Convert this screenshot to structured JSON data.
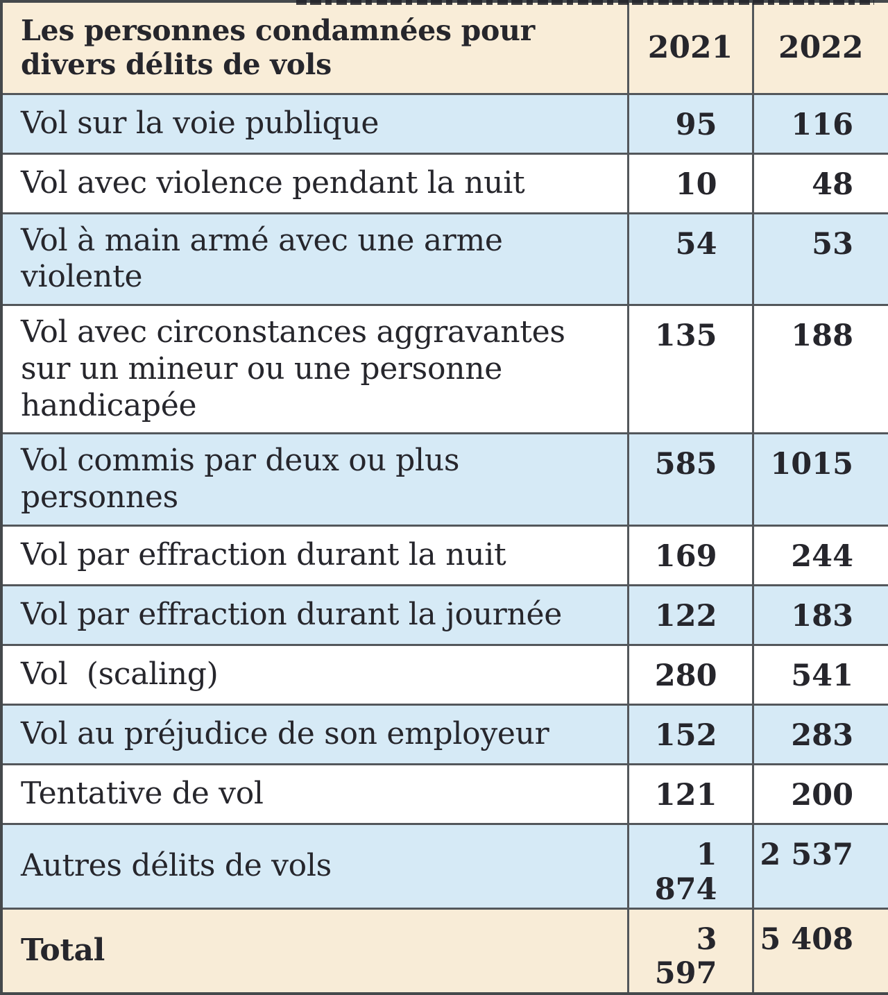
{
  "table": {
    "header": {
      "title": "Les personnes condamnées pour divers délits de vols",
      "col_2021": "2021",
      "col_2022": "2022"
    },
    "rows": [
      {
        "label": "Vol sur la voie publique",
        "v2021": "95",
        "v2022": "116"
      },
      {
        "label": "Vol avec violence pendant la nuit",
        "v2021": "10",
        "v2022": "48"
      },
      {
        "label": "Vol à main armé avec une arme violente",
        "v2021": "54",
        "v2022": "53"
      },
      {
        "label": "Vol avec circonstances aggravantes sur un mineur ou une personne handicapée",
        "v2021": "135",
        "v2022": "188"
      },
      {
        "label": "Vol commis par deux ou plus personnes",
        "v2021": "585",
        "v2022": "1015"
      },
      {
        "label": "Vol par effraction durant la nuit",
        "v2021": "169",
        "v2022": "244"
      },
      {
        "label": "Vol par effraction durant la journée",
        "v2021": "122",
        "v2022": "183"
      },
      {
        "label": "Vol  (scaling)",
        "v2021": "280",
        "v2022": "541"
      },
      {
        "label": "Vol au préjudice de son employeur",
        "v2021": "152",
        "v2022": "283"
      },
      {
        "label": "Tentative de vol",
        "v2021": "121",
        "v2022": "200"
      },
      {
        "label": "Autres délits de vols",
        "v2021": "1 874",
        "v2022": "2 537"
      }
    ],
    "total": {
      "label": "Total",
      "v2021": "3 597",
      "v2022": "5 408"
    }
  },
  "chart_data": {
    "type": "table",
    "title": "Les personnes condamnées pour divers délits de vols",
    "categories": [
      "Vol sur la voie publique",
      "Vol avec violence pendant la nuit",
      "Vol à main armé avec une arme violente",
      "Vol avec circonstances aggravantes sur un mineur ou une personne handicapée",
      "Vol commis par deux ou plus personnes",
      "Vol par effraction durant la nuit",
      "Vol par effraction durant la journée",
      "Vol (scaling)",
      "Vol au préjudice de son employeur",
      "Tentative de vol",
      "Autres délits de vols"
    ],
    "series": [
      {
        "name": "2021",
        "values": [
          95,
          10,
          54,
          135,
          585,
          169,
          122,
          280,
          152,
          121,
          1874
        ]
      },
      {
        "name": "2022",
        "values": [
          116,
          48,
          53,
          188,
          1015,
          244,
          183,
          541,
          283,
          200,
          2537
        ]
      }
    ],
    "total": {
      "2021": 3597,
      "2022": 5408
    }
  },
  "colors": {
    "header-bg": "#f9edd8",
    "row-blue": "#d6eaf6",
    "row-white": "#ffffff",
    "total-bg": "#f8ecd7",
    "border": "#53575b",
    "border-dark": "#45494c",
    "text": "#26262c",
    "strip": "#23242a"
  }
}
